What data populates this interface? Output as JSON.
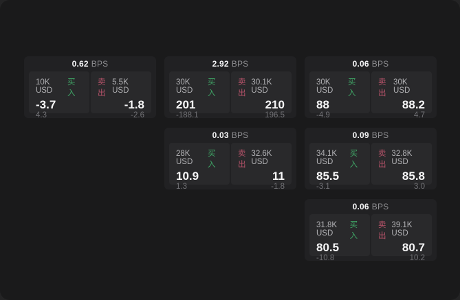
{
  "labels": {
    "bps_suffix": "BPS",
    "buy": "买入",
    "sell": "卖出"
  },
  "colors": {
    "background": "#242425",
    "window": "#1a1a1b",
    "card": "#212123",
    "panel": "#29292b",
    "buy_green": "#3fa465",
    "sell_red": "#b7536a",
    "value_white": "#f7f7f8",
    "muted_gray": "#717175"
  },
  "cards": [
    {
      "row": 0,
      "col": 0,
      "bps": "0.62",
      "buy": {
        "amount": "10K USD",
        "value": "-3.7",
        "sub": "4.3"
      },
      "sell": {
        "amount": "5.5K USD",
        "value": "-1.8",
        "sub": "-2.6"
      }
    },
    {
      "row": 0,
      "col": 1,
      "bps": "2.92",
      "buy": {
        "amount": "30K USD",
        "value": "201",
        "sub": "-188.1"
      },
      "sell": {
        "amount": "30.1K USD",
        "value": "210",
        "sub": "196.5"
      }
    },
    {
      "row": 0,
      "col": 2,
      "bps": "0.06",
      "buy": {
        "amount": "30K USD",
        "value": "88",
        "sub": "-4.9"
      },
      "sell": {
        "amount": "30K USD",
        "value": "88.2",
        "sub": "4.7"
      }
    },
    {
      "row": 1,
      "col": 1,
      "bps": "0.03",
      "buy": {
        "amount": "28K USD",
        "value": "10.9",
        "sub": "1.3"
      },
      "sell": {
        "amount": "32.6K USD",
        "value": "11",
        "sub": "-1.8"
      }
    },
    {
      "row": 1,
      "col": 2,
      "bps": "0.09",
      "buy": {
        "amount": "34.1K USD",
        "value": "85.5",
        "sub": "-3.1"
      },
      "sell": {
        "amount": "32.8K USD",
        "value": "85.8",
        "sub": "3.0"
      }
    },
    {
      "row": 2,
      "col": 2,
      "bps": "0.06",
      "buy": {
        "amount": "31.8K USD",
        "value": "80.5",
        "sub": "-10.8"
      },
      "sell": {
        "amount": "39.1K USD",
        "value": "80.7",
        "sub": "10.2"
      }
    }
  ]
}
